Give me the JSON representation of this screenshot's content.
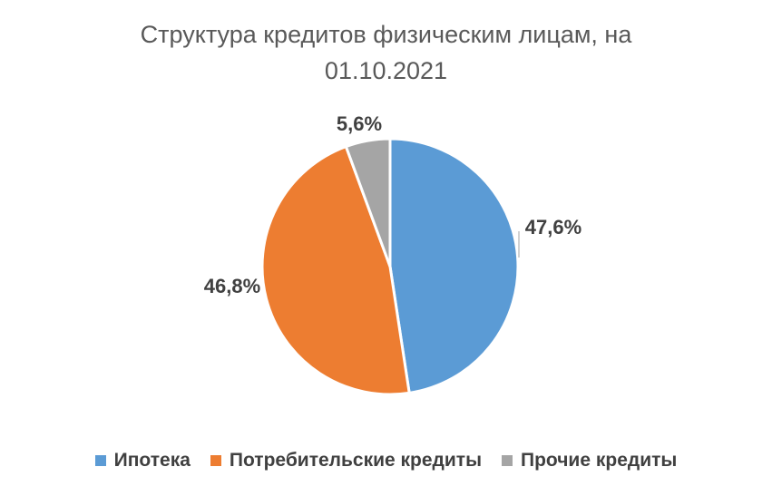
{
  "chart_data": {
    "type": "pie",
    "title_line1": "Структура кредитов физическим лицам, на",
    "title_line2": "01.10.2021",
    "categories": [
      "Ипотека",
      "Потребительские кредиты",
      "Прочие кредиты"
    ],
    "values": [
      47.6,
      46.8,
      5.6
    ],
    "value_labels": [
      "47,6%",
      "46,8%",
      "5,6%"
    ],
    "colors": [
      "#5b9bd5",
      "#ed7d31",
      "#a5a5a5"
    ],
    "legend_position": "bottom",
    "start_angle_deg": 0,
    "direction": "clockwise"
  }
}
